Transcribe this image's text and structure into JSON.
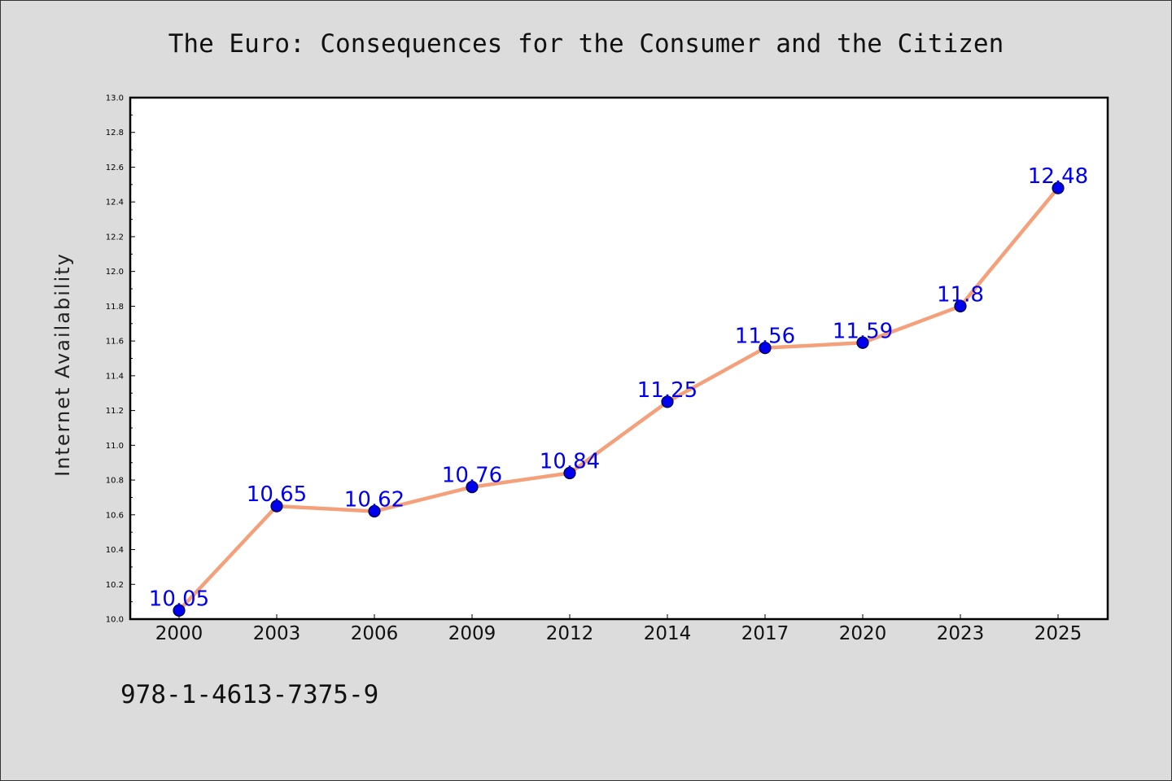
{
  "chart_data": {
    "type": "line",
    "title": "The Euro: Consequences for the Consumer and the Citizen",
    "xlabel": "",
    "ylabel": "Internet Availability",
    "categories": [
      "2000",
      "2003",
      "2006",
      "2009",
      "2012",
      "2014",
      "2017",
      "2020",
      "2023",
      "2025"
    ],
    "series": [
      {
        "values": [
          10.05,
          10.65,
          10.62,
          10.76,
          10.84,
          11.25,
          11.56,
          11.59,
          11.8,
          12.48
        ],
        "labels": [
          "10.05",
          "10.65",
          "10.62",
          "10.76",
          "10.84",
          "11.25",
          "11.56",
          "11.59",
          "11.8",
          "12.48"
        ],
        "line_color": "#f4a07a",
        "marker_color": "#0000ee",
        "label_color": "#0000ee"
      }
    ],
    "ylim": [
      10.0,
      13.0
    ],
    "yticks": [
      "10.0",
      "10.2",
      "10.4",
      "10.6",
      "10.8",
      "11.0",
      "11.2",
      "11.4",
      "11.6",
      "11.8",
      "12.0",
      "12.2",
      "12.4",
      "12.6",
      "12.8",
      "13.0"
    ],
    "grid": false,
    "legend": "none"
  },
  "footer": {
    "isbn": "978-1-4613-7375-9"
  },
  "colors": {
    "background": "#dcdcdc",
    "plot_background": "#ffffff",
    "axis": "#000000"
  }
}
